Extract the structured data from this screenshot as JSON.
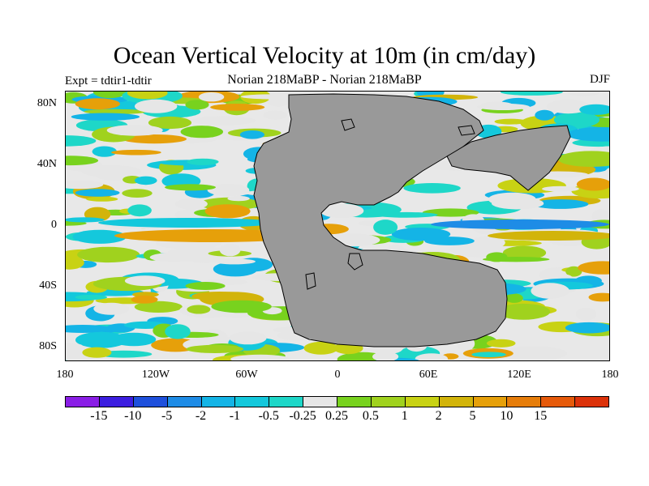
{
  "header": {
    "title": "Ocean Vertical Velocity at 10m (in cm/day)",
    "left": "Expt = tdtir1-tdtir",
    "center": "Norian  218MaBP - Norian  218MaBP",
    "right": "DJF"
  },
  "map": {
    "projection": "cylindrical equidistant",
    "lon_range": [
      -180,
      180
    ],
    "lat_range": [
      -90,
      90
    ],
    "land_color": "#999999",
    "ocean_background": "#e8e8e8"
  },
  "axes": {
    "y_ticks": [
      "80N",
      "40N",
      "0",
      "40S",
      "80S"
    ],
    "y_values": [
      80,
      40,
      0,
      -40,
      -80
    ],
    "x_ticks": [
      "180",
      "120W",
      "60W",
      "0",
      "60E",
      "120E",
      "180"
    ],
    "x_values": [
      -180,
      -120,
      -60,
      0,
      60,
      120,
      180
    ]
  },
  "colorbar": {
    "colors": [
      "#8a1ee6",
      "#3c1ee0",
      "#1e50dc",
      "#1e8ce6",
      "#14b4e6",
      "#14c8dc",
      "#1ed7c8",
      "#e6e6e6",
      "#78d21e",
      "#a0d21e",
      "#c8d214",
      "#d2b40a",
      "#e6a00a",
      "#e67d0a",
      "#e65a0a",
      "#dc320a"
    ],
    "labels": [
      "-15",
      "-10",
      "-5",
      "-2",
      "-1",
      "-0.5",
      "-0.25",
      "0.25",
      "0.5",
      "1",
      "2",
      "5",
      "10",
      "15"
    ]
  }
}
